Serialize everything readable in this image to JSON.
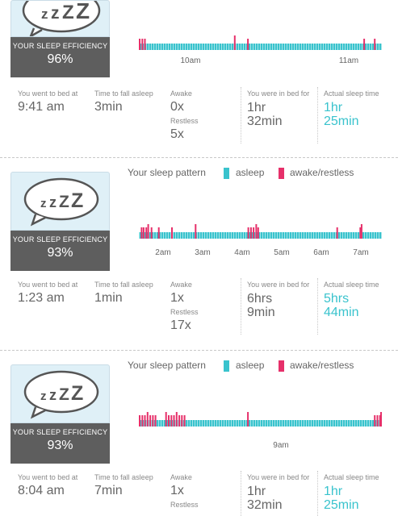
{
  "colors": {
    "asleep": "#39c3cd",
    "awake": "#e6306a",
    "badge_dark": "#5e5e5e",
    "highlight": "#39c3cd"
  },
  "legend": {
    "title": "Your sleep pattern",
    "asleep": "asleep",
    "awake": "awake/restless"
  },
  "nights": [
    {
      "efficiency_label": "YOUR SLEEP EFFICIENCY",
      "efficiency": "96%",
      "chart_data": {
        "type": "timeline",
        "start": "9:41 am",
        "end": "11:13 am",
        "ticks": [
          "10am",
          "11am"
        ],
        "events": [
          {
            "t": "9:41",
            "state": "awake/restless"
          },
          {
            "t": "9:42",
            "state": "awake/restless"
          },
          {
            "t": "9:43",
            "state": "awake/restless"
          },
          {
            "t": "10:17",
            "state": "awake/restless"
          },
          {
            "t": "10:22",
            "state": "awake/restless"
          },
          {
            "t": "11:06",
            "state": "awake/restless"
          },
          {
            "t": "11:10",
            "state": "awake/restless"
          }
        ]
      },
      "stats": {
        "bed_label": "You went to bed at",
        "bed": "9:41 am",
        "fall_label": "Time to fall asleep",
        "fall": "3min",
        "awake_label": "Awake",
        "awake": "0x",
        "restless_label": "Restless",
        "restless": "5x",
        "inbed_label": "You were in bed for",
        "inbed1": "1hr",
        "inbed2": "32min",
        "actual_label": "Actual sleep time",
        "actual1": "1hr",
        "actual2": "25min"
      }
    },
    {
      "efficiency_label": "YOUR SLEEP EFFICIENCY",
      "efficiency": "93%",
      "chart_data": {
        "type": "timeline",
        "start": "1:23 am",
        "end": "7:32 am",
        "ticks": [
          "2am",
          "3am",
          "4am",
          "5am",
          "6am",
          "7am"
        ],
        "events": [
          {
            "t": "1:26",
            "state": "awake/restless"
          },
          {
            "t": "1:29",
            "state": "awake/restless"
          },
          {
            "t": "1:33",
            "state": "awake/restless"
          },
          {
            "t": "1:36",
            "state": "awake/restless"
          },
          {
            "t": "1:41",
            "state": "awake/restless"
          },
          {
            "t": "1:52",
            "state": "awake/restless"
          },
          {
            "t": "2:12",
            "state": "awake/restless"
          },
          {
            "t": "2:48",
            "state": "awake/restless"
          },
          {
            "t": "4:08",
            "state": "awake/restless"
          },
          {
            "t": "4:12",
            "state": "awake/restless"
          },
          {
            "t": "4:16",
            "state": "awake/restless"
          },
          {
            "t": "4:20",
            "state": "awake/restless"
          },
          {
            "t": "4:23",
            "state": "awake/restless"
          },
          {
            "t": "6:23",
            "state": "awake/restless"
          },
          {
            "t": "6:58",
            "state": "awake/restless"
          },
          {
            "t": "7:00",
            "state": "awake/restless"
          }
        ]
      },
      "stats": {
        "bed_label": "You went to bed at",
        "bed": "1:23 am",
        "fall_label": "Time to fall asleep",
        "fall": "1min",
        "awake_label": "Awake",
        "awake": "1x",
        "restless_label": "Restless",
        "restless": "17x",
        "inbed_label": "You were in bed for",
        "inbed1": "6hrs",
        "inbed2": "9min",
        "actual_label": "Actual sleep time",
        "actual1": "5hrs",
        "actual2": "44min"
      }
    },
    {
      "efficiency_label": "YOUR SLEEP EFFICIENCY",
      "efficiency": "93%",
      "chart_data": {
        "type": "timeline",
        "start": "8:04 am",
        "end": "9:36 am",
        "ticks": [
          "9am"
        ],
        "events": [
          {
            "t": "8:04",
            "state": "awake/restless"
          },
          {
            "t": "8:05",
            "state": "awake/restless"
          },
          {
            "t": "8:06",
            "state": "awake/restless"
          },
          {
            "t": "8:07",
            "state": "awake/restless"
          },
          {
            "t": "8:08",
            "state": "awake/restless"
          },
          {
            "t": "8:09",
            "state": "awake/restless"
          },
          {
            "t": "8:10",
            "state": "awake/restless"
          },
          {
            "t": "8:14",
            "state": "awake/restless"
          },
          {
            "t": "8:15",
            "state": "awake/restless"
          },
          {
            "t": "8:16",
            "state": "awake/restless"
          },
          {
            "t": "8:17",
            "state": "awake/restless"
          },
          {
            "t": "8:18",
            "state": "awake/restless"
          },
          {
            "t": "8:19",
            "state": "awake/restless"
          },
          {
            "t": "8:20",
            "state": "awake/restless"
          },
          {
            "t": "8:21",
            "state": "awake/restless"
          },
          {
            "t": "8:45",
            "state": "awake/restless"
          },
          {
            "t": "9:33",
            "state": "awake/restless"
          },
          {
            "t": "9:34",
            "state": "awake/restless"
          },
          {
            "t": "9:35",
            "state": "awake/restless"
          },
          {
            "t": "9:36",
            "state": "awake/restless"
          }
        ]
      },
      "stats": {
        "bed_label": "You went to bed at",
        "bed": "8:04 am",
        "fall_label": "Time to fall asleep",
        "fall": "7min",
        "awake_label": "Awake",
        "awake": "1x",
        "restless_label": "Restless",
        "restless": "",
        "inbed_label": "You were in bed for",
        "inbed1": "1hr",
        "inbed2": "32min",
        "actual_label": "Actual sleep time",
        "actual1": "1hr",
        "actual2": "25min"
      }
    }
  ]
}
